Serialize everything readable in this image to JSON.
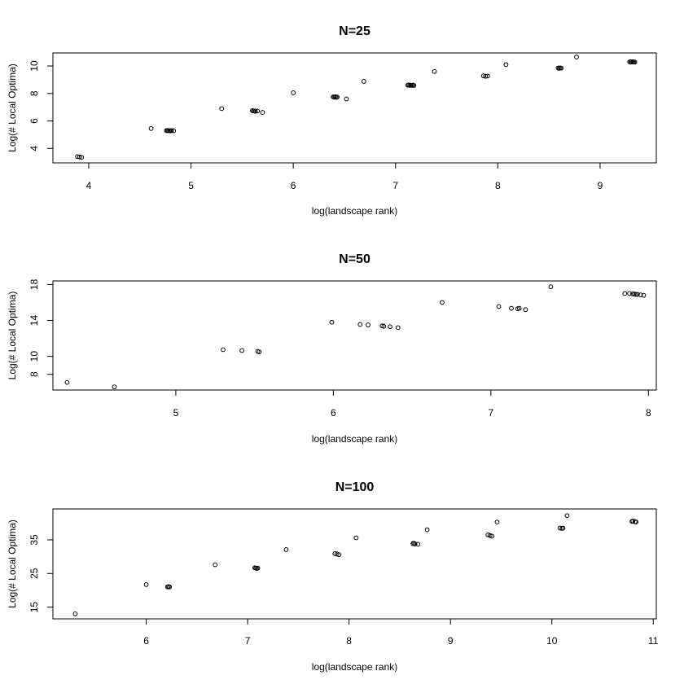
{
  "chart_data": [
    {
      "type": "scatter",
      "title": "N=25",
      "xlabel": "log(landscape rank)",
      "ylabel": "Log(# Local Optima)",
      "xlim": [
        3.65,
        9.55
      ],
      "ylim": [
        2.95,
        10.95
      ],
      "xticks": [
        4,
        5,
        6,
        7,
        8,
        9
      ],
      "yticks": [
        4,
        6,
        8,
        10
      ],
      "points": [
        [
          3.89,
          3.4
        ],
        [
          3.91,
          3.38
        ],
        [
          3.93,
          3.35
        ],
        [
          4.61,
          5.45
        ],
        [
          4.76,
          5.3
        ],
        [
          4.77,
          5.3
        ],
        [
          4.78,
          5.29
        ],
        [
          4.79,
          5.3
        ],
        [
          4.8,
          5.28
        ],
        [
          4.81,
          5.3
        ],
        [
          4.83,
          5.29
        ],
        [
          5.3,
          6.9
        ],
        [
          5.6,
          6.75
        ],
        [
          5.61,
          6.72
        ],
        [
          5.62,
          6.73
        ],
        [
          5.63,
          6.7
        ],
        [
          5.65,
          6.72
        ],
        [
          5.7,
          6.62
        ],
        [
          6.0,
          8.05
        ],
        [
          6.39,
          7.75
        ],
        [
          6.4,
          7.73
        ],
        [
          6.41,
          7.76
        ],
        [
          6.42,
          7.72
        ],
        [
          6.43,
          7.74
        ],
        [
          6.52,
          7.6
        ],
        [
          6.69,
          8.88
        ],
        [
          7.12,
          8.6
        ],
        [
          7.13,
          8.62
        ],
        [
          7.14,
          8.58
        ],
        [
          7.15,
          8.6
        ],
        [
          7.16,
          8.59
        ],
        [
          7.17,
          8.61
        ],
        [
          7.18,
          8.58
        ],
        [
          7.38,
          9.6
        ],
        [
          7.86,
          9.28
        ],
        [
          7.88,
          9.25
        ],
        [
          7.9,
          9.27
        ],
        [
          8.08,
          10.1
        ],
        [
          8.59,
          9.85
        ],
        [
          8.6,
          9.83
        ],
        [
          8.61,
          9.86
        ],
        [
          8.62,
          9.84
        ],
        [
          8.77,
          10.65
        ],
        [
          9.29,
          10.3
        ],
        [
          9.3,
          10.28
        ],
        [
          9.31,
          10.31
        ],
        [
          9.32,
          10.29
        ],
        [
          9.33,
          10.3
        ],
        [
          9.34,
          10.28
        ]
      ]
    },
    {
      "type": "scatter",
      "title": "N=50",
      "xlabel": "log(landscape rank)",
      "ylabel": "Log(# Local Optima)",
      "xlim": [
        4.22,
        8.05
      ],
      "ylim": [
        6.25,
        18.4
      ],
      "xticks": [
        5,
        6,
        7,
        8
      ],
      "yticks": [
        8,
        10,
        14,
        18
      ],
      "points": [
        [
          4.31,
          7.1
        ],
        [
          4.61,
          6.6
        ],
        [
          5.3,
          10.75
        ],
        [
          5.42,
          10.65
        ],
        [
          5.52,
          10.55
        ],
        [
          5.53,
          10.5
        ],
        [
          5.99,
          13.8
        ],
        [
          6.17,
          13.55
        ],
        [
          6.22,
          13.5
        ],
        [
          6.31,
          13.4
        ],
        [
          6.32,
          13.35
        ],
        [
          6.36,
          13.3
        ],
        [
          6.41,
          13.2
        ],
        [
          6.69,
          16.0
        ],
        [
          7.05,
          15.55
        ],
        [
          7.13,
          15.35
        ],
        [
          7.17,
          15.3
        ],
        [
          7.18,
          15.35
        ],
        [
          7.22,
          15.2
        ],
        [
          7.38,
          17.75
        ],
        [
          7.85,
          17.0
        ],
        [
          7.88,
          17.0
        ],
        [
          7.9,
          16.95
        ],
        [
          7.91,
          16.95
        ],
        [
          7.92,
          16.9
        ],
        [
          7.93,
          16.9
        ],
        [
          7.95,
          16.85
        ],
        [
          7.97,
          16.8
        ]
      ]
    },
    {
      "type": "scatter",
      "title": "N=100",
      "xlabel": "log(landscape rank)",
      "ylabel": "Log(# Local Optima)",
      "xlim": [
        5.08,
        11.03
      ],
      "ylim": [
        11.5,
        44.2
      ],
      "xticks": [
        6,
        7,
        8,
        9,
        10,
        11
      ],
      "yticks": [
        15,
        25,
        35
      ],
      "points": [
        [
          5.3,
          13.0
        ],
        [
          6.0,
          21.7
        ],
        [
          6.21,
          21.0
        ],
        [
          6.22,
          21.1
        ],
        [
          6.23,
          21.0
        ],
        [
          6.68,
          27.6
        ],
        [
          7.07,
          26.7
        ],
        [
          7.08,
          26.6
        ],
        [
          7.09,
          26.5
        ],
        [
          7.1,
          26.6
        ],
        [
          7.38,
          32.1
        ],
        [
          7.86,
          30.9
        ],
        [
          7.88,
          30.8
        ],
        [
          7.9,
          30.6
        ],
        [
          8.07,
          35.6
        ],
        [
          8.63,
          33.9
        ],
        [
          8.64,
          34.0
        ],
        [
          8.65,
          33.8
        ],
        [
          8.68,
          33.7
        ],
        [
          8.77,
          38.0
        ],
        [
          9.37,
          36.5
        ],
        [
          9.39,
          36.3
        ],
        [
          9.41,
          36.1
        ],
        [
          9.46,
          40.3
        ],
        [
          10.08,
          38.5
        ],
        [
          10.1,
          38.4
        ],
        [
          10.11,
          38.5
        ],
        [
          10.15,
          42.2
        ],
        [
          10.79,
          40.5
        ],
        [
          10.8,
          40.6
        ],
        [
          10.82,
          40.4
        ],
        [
          10.83,
          40.3
        ]
      ]
    }
  ]
}
